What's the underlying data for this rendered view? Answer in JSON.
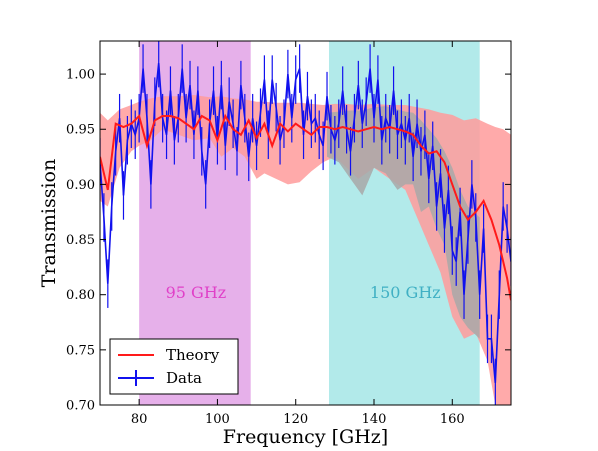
{
  "chart_data": {
    "type": "line",
    "title": "",
    "xlabel": "Frequency [GHz]",
    "ylabel": "Transmission",
    "xlim": [
      70,
      175
    ],
    "ylim": [
      0.7,
      1.03
    ],
    "xticks": [
      80,
      100,
      120,
      140,
      160
    ],
    "yticks": [
      0.7,
      0.75,
      0.8,
      0.85,
      0.9,
      0.95,
      1.0
    ],
    "grid": false,
    "legend_position": "lower-left",
    "bands": [
      {
        "label": "95 GHz",
        "x0": 80,
        "x1": 108.5,
        "color": "#e6b0ea",
        "label_color": "#e040c8",
        "label_x": 94.5,
        "label_y": 0.797
      },
      {
        "label": "150 GHz",
        "x0": 128.5,
        "x1": 167,
        "color": "#b2eaea",
        "label_color": "#40b0c4",
        "label_x": 148,
        "label_y": 0.797
      }
    ],
    "theory_band": {
      "color": "#ff9b9b",
      "x": [
        70,
        72,
        75,
        78,
        80,
        83,
        86,
        90,
        94,
        98,
        101,
        104,
        107,
        110,
        112,
        115,
        118,
        121,
        124,
        127,
        130,
        133,
        136,
        140,
        144,
        148,
        151,
        154,
        157,
        160,
        163,
        166,
        169,
        171,
        173,
        175
      ],
      "upper": [
        0.965,
        0.958,
        0.968,
        0.972,
        0.975,
        0.978,
        0.98,
        0.98,
        0.981,
        0.979,
        0.98,
        0.978,
        0.977,
        0.975,
        0.975,
        0.974,
        0.974,
        0.974,
        0.973,
        0.972,
        0.973,
        0.973,
        0.972,
        0.973,
        0.972,
        0.972,
        0.97,
        0.968,
        0.965,
        0.963,
        0.958,
        0.96,
        0.955,
        0.952,
        0.95,
        0.945
      ],
      "lower": [
        0.885,
        0.88,
        0.915,
        0.93,
        0.935,
        0.94,
        0.95,
        0.945,
        0.94,
        0.942,
        0.925,
        0.933,
        0.925,
        0.905,
        0.91,
        0.905,
        0.9,
        0.902,
        0.912,
        0.92,
        0.925,
        0.915,
        0.905,
        0.915,
        0.905,
        0.895,
        0.87,
        0.845,
        0.82,
        0.78,
        0.76,
        0.765,
        0.74,
        0.7,
        0.69,
        0.68
      ]
    },
    "grey_band": {
      "color": "#a8a8a8",
      "x": [
        128,
        131,
        134,
        137,
        140,
        143,
        146,
        148,
        150,
        152,
        154,
        156,
        158,
        160,
        162,
        164,
        167
      ],
      "upper": [
        0.965,
        0.966,
        0.967,
        0.967,
        0.97,
        0.971,
        0.968,
        0.966,
        0.965,
        0.958,
        0.95,
        0.942,
        0.93,
        0.915,
        0.895,
        0.88,
        0.87
      ],
      "lower": [
        0.925,
        0.92,
        0.905,
        0.89,
        0.915,
        0.91,
        0.895,
        0.9,
        0.9,
        0.875,
        0.88,
        0.86,
        0.845,
        0.8,
        0.78,
        0.77,
        0.76
      ]
    },
    "series": [
      {
        "name": "Theory",
        "kind": "line",
        "color": "#ff1a1a",
        "x": [
          70,
          72,
          74,
          76,
          78,
          80,
          82,
          84,
          86,
          88,
          90,
          92,
          94,
          96,
          98,
          100,
          102,
          104,
          106,
          108,
          110,
          112,
          114,
          116,
          118,
          120,
          122,
          124,
          126,
          128,
          130,
          132,
          134,
          136,
          138,
          140,
          142,
          144,
          146,
          148,
          150,
          152,
          154,
          156,
          158,
          160,
          162,
          164,
          166,
          168,
          170,
          172,
          174,
          175
        ],
        "y": [
          0.925,
          0.895,
          0.955,
          0.952,
          0.955,
          0.962,
          0.935,
          0.958,
          0.962,
          0.962,
          0.96,
          0.955,
          0.95,
          0.962,
          0.958,
          0.94,
          0.962,
          0.95,
          0.945,
          0.958,
          0.942,
          0.955,
          0.935,
          0.955,
          0.948,
          0.955,
          0.95,
          0.945,
          0.952,
          0.952,
          0.95,
          0.952,
          0.95,
          0.948,
          0.95,
          0.952,
          0.95,
          0.952,
          0.95,
          0.948,
          0.945,
          0.935,
          0.928,
          0.93,
          0.92,
          0.9,
          0.88,
          0.868,
          0.875,
          0.885,
          0.868,
          0.845,
          0.815,
          0.795
        ]
      },
      {
        "name": "Data",
        "kind": "errorbar",
        "color": "#1111ee",
        "x": [
          70,
          71,
          72,
          73,
          74,
          75,
          76,
          77,
          78,
          79,
          80,
          81,
          82,
          83,
          84,
          85,
          86,
          87,
          88,
          89,
          90,
          91,
          92,
          93,
          94,
          95,
          96,
          97,
          98,
          99,
          100,
          101,
          102,
          103,
          104,
          105,
          106,
          107,
          108,
          109,
          110,
          111,
          112,
          113,
          114,
          115,
          116,
          117,
          118,
          119,
          120,
          121,
          122,
          123,
          124,
          125,
          126,
          127,
          128,
          129,
          130,
          131,
          132,
          133,
          134,
          135,
          136,
          137,
          138,
          139,
          140,
          141,
          142,
          143,
          144,
          145,
          146,
          147,
          148,
          149,
          150,
          151,
          152,
          153,
          154,
          155,
          156,
          157,
          158,
          159,
          160,
          161,
          162,
          163,
          164,
          165,
          166,
          167,
          168,
          169,
          170,
          171,
          172,
          173,
          174,
          175
        ],
        "y": [
          0.92,
          0.87,
          0.81,
          0.88,
          0.93,
          0.96,
          0.89,
          0.94,
          0.955,
          0.945,
          0.96,
          1.005,
          0.96,
          0.9,
          0.975,
          1.01,
          0.96,
          0.945,
          0.985,
          0.94,
          0.96,
          1.005,
          0.96,
          0.99,
          0.945,
          0.985,
          0.93,
          0.9,
          0.955,
          0.985,
          0.94,
          0.99,
          0.935,
          0.975,
          0.955,
          0.93,
          0.99,
          0.96,
          0.925,
          0.96,
          0.935,
          0.965,
          0.995,
          0.945,
          0.995,
          0.97,
          0.94,
          0.955,
          1.0,
          0.96,
          0.995,
          1.005,
          0.945,
          0.98,
          0.955,
          0.96,
          0.945,
          0.935,
          0.98,
          0.95,
          0.94,
          0.955,
          0.985,
          0.95,
          0.93,
          0.96,
          0.99,
          0.955,
          0.975,
          1.005,
          0.96,
          0.995,
          0.94,
          0.96,
          0.95,
          0.985,
          0.945,
          0.955,
          0.94,
          0.96,
          0.925,
          0.955,
          0.93,
          0.945,
          0.905,
          0.935,
          0.88,
          0.91,
          0.86,
          0.895,
          0.84,
          0.83,
          0.875,
          0.8,
          0.85,
          0.9,
          0.87,
          0.8,
          0.86,
          0.76,
          0.76,
          0.72,
          0.8,
          0.88,
          0.86,
          0.83
        ],
        "yerr": 0.022
      }
    ]
  }
}
